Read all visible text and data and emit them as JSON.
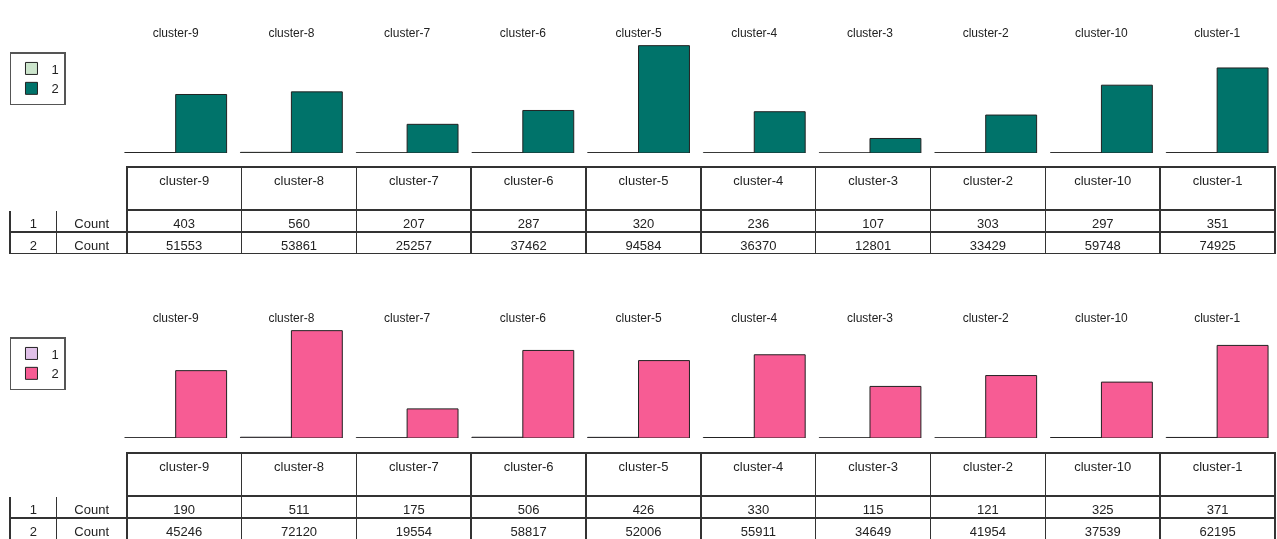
{
  "chart_data": [
    {
      "type": "bar",
      "categories": [
        "cluster-9",
        "cluster-8",
        "cluster-7",
        "cluster-6",
        "cluster-5",
        "cluster-4",
        "cluster-3",
        "cluster-2",
        "cluster-10",
        "cluster-1"
      ],
      "ylabel": "Count",
      "data_labels": true,
      "legend": "left",
      "tick_labels": "x",
      "series": [
        {
          "name": "1",
          "color": "#cce5cc",
          "values": [
            403,
            560,
            207,
            287,
            320,
            236,
            107,
            303,
            297,
            351
          ]
        },
        {
          "name": "2",
          "color": "#00736a",
          "values": [
            51553,
            53861,
            25257,
            37462,
            94584,
            36370,
            12801,
            33429,
            59748,
            74925
          ]
        }
      ]
    },
    {
      "type": "bar",
      "categories": [
        "cluster-9",
        "cluster-8",
        "cluster-7",
        "cluster-6",
        "cluster-5",
        "cluster-4",
        "cluster-3",
        "cluster-2",
        "cluster-10",
        "cluster-1"
      ],
      "ylabel": "Count",
      "data_labels": true,
      "legend": "left",
      "tick_labels": "x",
      "series": [
        {
          "name": "1",
          "color": "#e0c0e8",
          "values": [
            190,
            511,
            175,
            506,
            426,
            330,
            115,
            121,
            325,
            371
          ]
        },
        {
          "name": "2",
          "color": "#f75c94",
          "values": [
            45246,
            72120,
            19554,
            58817,
            52006,
            55911,
            34649,
            41954,
            37539,
            62195
          ]
        }
      ]
    }
  ]
}
